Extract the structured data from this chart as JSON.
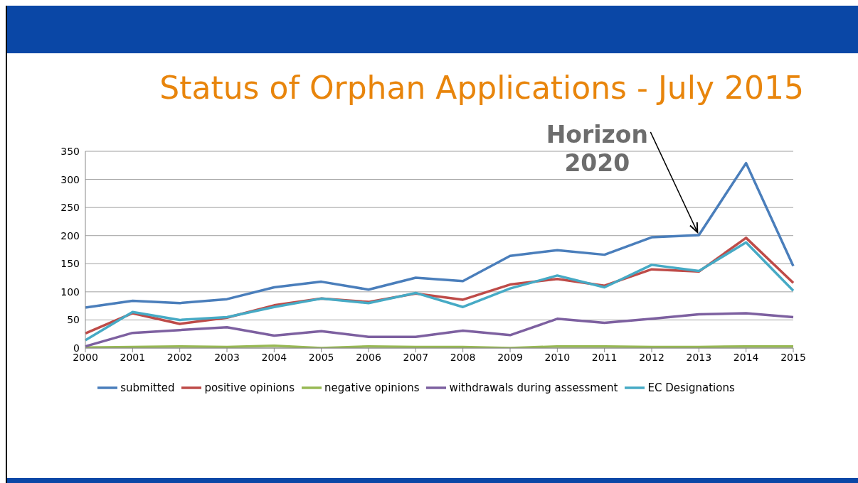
{
  "chart_data": {
    "type": "line",
    "title": "Status of Orphan Applications - July 2015",
    "categories": [
      "2000",
      "2001",
      "2002",
      "2003",
      "2004",
      "2005",
      "2006",
      "2007",
      "2008",
      "2009",
      "2010",
      "2011",
      "2012",
      "2013",
      "2014",
      "2015"
    ],
    "series": [
      {
        "name": "submitted",
        "color": "#4a7ebb",
        "values": [
          72,
          84,
          80,
          87,
          108,
          118,
          104,
          125,
          119,
          164,
          174,
          166,
          197,
          201,
          329,
          146
        ]
      },
      {
        "name": "positive opinions",
        "color": "#be4b48",
        "values": [
          26,
          62,
          43,
          54,
          76,
          88,
          82,
          97,
          86,
          113,
          123,
          111,
          140,
          136,
          196,
          116
        ]
      },
      {
        "name": "negative opinions",
        "color": "#98b954",
        "values": [
          1,
          2,
          3,
          2,
          4,
          0,
          3,
          2,
          2,
          0,
          3,
          3,
          2,
          2,
          3,
          3
        ]
      },
      {
        "name": "withdrawals during assessment",
        "color": "#7d60a0",
        "values": [
          3,
          27,
          32,
          37,
          22,
          30,
          20,
          20,
          31,
          23,
          52,
          45,
          52,
          60,
          62,
          55
        ]
      },
      {
        "name": "EC Designations",
        "color": "#46aac5",
        "values": [
          14,
          64,
          50,
          55,
          73,
          88,
          80,
          98,
          73,
          106,
          129,
          108,
          148,
          137,
          188,
          102
        ]
      }
    ],
    "ylim": [
      0,
      350
    ],
    "yticks": [
      0,
      50,
      100,
      150,
      200,
      250,
      300,
      350
    ],
    "grid": "y",
    "legend": "bottom",
    "marker": "none",
    "annotations": [
      {
        "text": "Horizon 2020",
        "x": "2013",
        "y": 201
      }
    ]
  }
}
